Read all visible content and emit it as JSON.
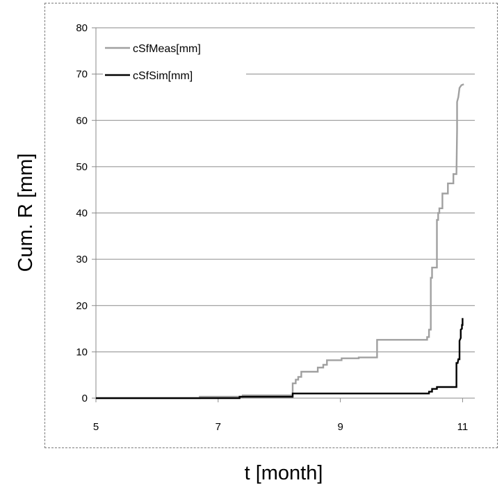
{
  "chart_data": {
    "type": "line",
    "title": "",
    "xlabel": "t [month]",
    "ylabel": "Cum. R [mm]",
    "xlim": [
      5,
      11.2
    ],
    "ylim": [
      0,
      80
    ],
    "x_ticks": [
      5,
      7,
      9,
      11
    ],
    "y_ticks": [
      0,
      10,
      20,
      30,
      40,
      50,
      60,
      70,
      80
    ],
    "grid": "horizontal",
    "legend_position": "top-left",
    "series": [
      {
        "name": "cSfMeas[mm]",
        "color": "#a0a0a0",
        "points": [
          [
            5.0,
            0
          ],
          [
            6.7,
            0
          ],
          [
            6.7,
            0.3
          ],
          [
            7.4,
            0.3
          ],
          [
            7.4,
            0.6
          ],
          [
            8.22,
            0.6
          ],
          [
            8.22,
            3.2
          ],
          [
            8.27,
            3.2
          ],
          [
            8.27,
            4.0
          ],
          [
            8.31,
            4.0
          ],
          [
            8.31,
            4.6
          ],
          [
            8.36,
            4.6
          ],
          [
            8.36,
            5.7
          ],
          [
            8.63,
            5.7
          ],
          [
            8.63,
            6.6
          ],
          [
            8.72,
            6.6
          ],
          [
            8.72,
            7.2
          ],
          [
            8.78,
            7.2
          ],
          [
            8.78,
            8.2
          ],
          [
            9.02,
            8.2
          ],
          [
            9.02,
            8.6
          ],
          [
            9.3,
            8.6
          ],
          [
            9.3,
            8.8
          ],
          [
            9.6,
            8.8
          ],
          [
            9.6,
            12.6
          ],
          [
            10.42,
            12.6
          ],
          [
            10.42,
            13.2
          ],
          [
            10.45,
            13.2
          ],
          [
            10.45,
            14.8
          ],
          [
            10.48,
            14.8
          ],
          [
            10.48,
            26.0
          ],
          [
            10.5,
            26.0
          ],
          [
            10.5,
            28.2
          ],
          [
            10.58,
            28.2
          ],
          [
            10.58,
            38.5
          ],
          [
            10.6,
            38.5
          ],
          [
            10.6,
            40.0
          ],
          [
            10.62,
            40.0
          ],
          [
            10.62,
            41.0
          ],
          [
            10.67,
            41.0
          ],
          [
            10.67,
            44.2
          ],
          [
            10.76,
            44.2
          ],
          [
            10.76,
            46.4
          ],
          [
            10.85,
            46.4
          ],
          [
            10.85,
            48.4
          ],
          [
            10.9,
            48.4
          ],
          [
            10.91,
            58.0
          ],
          [
            10.91,
            64.0
          ],
          [
            10.93,
            65.0
          ],
          [
            10.95,
            67.0
          ],
          [
            10.98,
            67.6
          ],
          [
            11.02,
            67.8
          ]
        ]
      },
      {
        "name": "cSfSim[mm]",
        "color": "#000000",
        "points": [
          [
            5.0,
            0
          ],
          [
            7.35,
            0
          ],
          [
            7.35,
            0.3
          ],
          [
            8.22,
            0.3
          ],
          [
            8.22,
            1.0
          ],
          [
            10.45,
            1.0
          ],
          [
            10.45,
            1.4
          ],
          [
            10.5,
            1.4
          ],
          [
            10.5,
            2.0
          ],
          [
            10.58,
            2.0
          ],
          [
            10.58,
            2.4
          ],
          [
            10.9,
            2.4
          ],
          [
            10.9,
            7.6
          ],
          [
            10.92,
            7.6
          ],
          [
            10.93,
            8.4
          ],
          [
            10.95,
            8.4
          ],
          [
            10.95,
            12.4
          ],
          [
            10.97,
            13.0
          ],
          [
            10.97,
            14.8
          ],
          [
            10.99,
            15.0
          ],
          [
            10.99,
            15.8
          ],
          [
            11.0,
            15.8
          ],
          [
            11.0,
            17.3
          ]
        ]
      }
    ]
  }
}
